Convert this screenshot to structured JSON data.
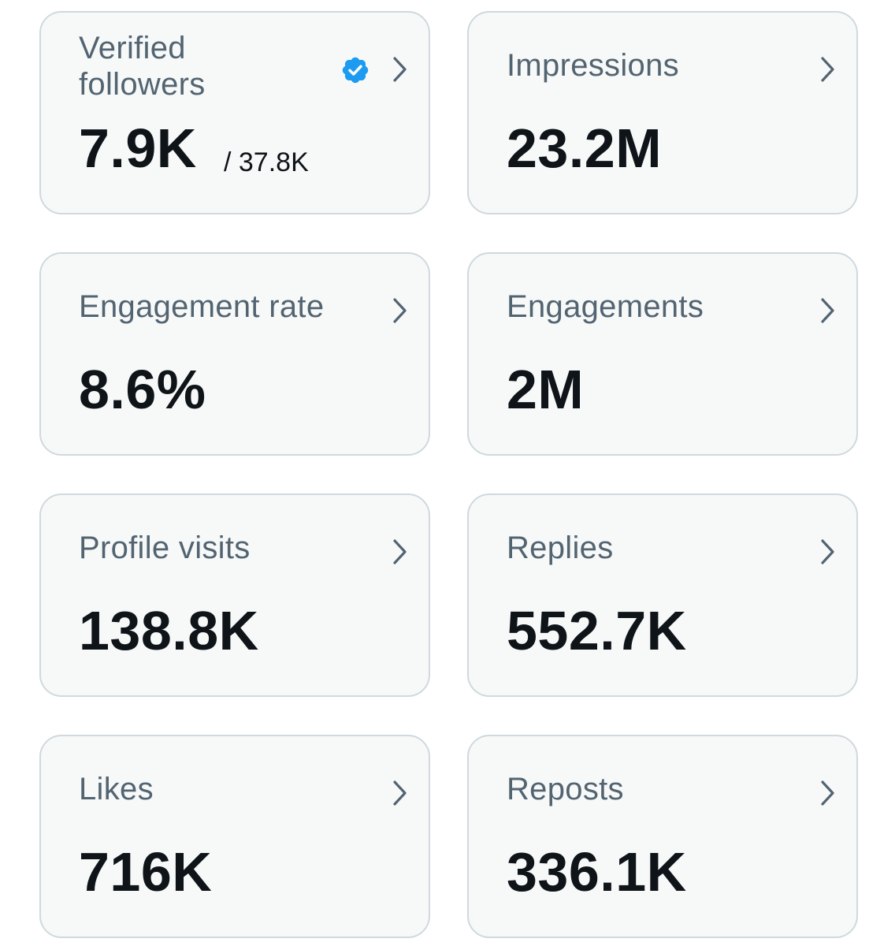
{
  "cards": [
    {
      "label": "Verified followers",
      "value": "7.9K",
      "total": "/ 37.8K",
      "verified": true
    },
    {
      "label": "Impressions",
      "value": "23.2M"
    },
    {
      "label": "Engagement rate",
      "value": "8.6%"
    },
    {
      "label": "Engagements",
      "value": "2M"
    },
    {
      "label": "Profile visits",
      "value": "138.8K"
    },
    {
      "label": "Replies",
      "value": "552.7K"
    },
    {
      "label": "Likes",
      "value": "716K"
    },
    {
      "label": "Reposts",
      "value": "336.1K"
    }
  ],
  "icons": {
    "chevron": "chevron-right-icon",
    "verified": "verified-badge-icon"
  },
  "colors": {
    "card_background": "#f7f9f9",
    "card_border": "#cfd9de",
    "label_text": "#536471",
    "value_text": "#0f1419",
    "verified_blue": "#1d9bf0"
  }
}
